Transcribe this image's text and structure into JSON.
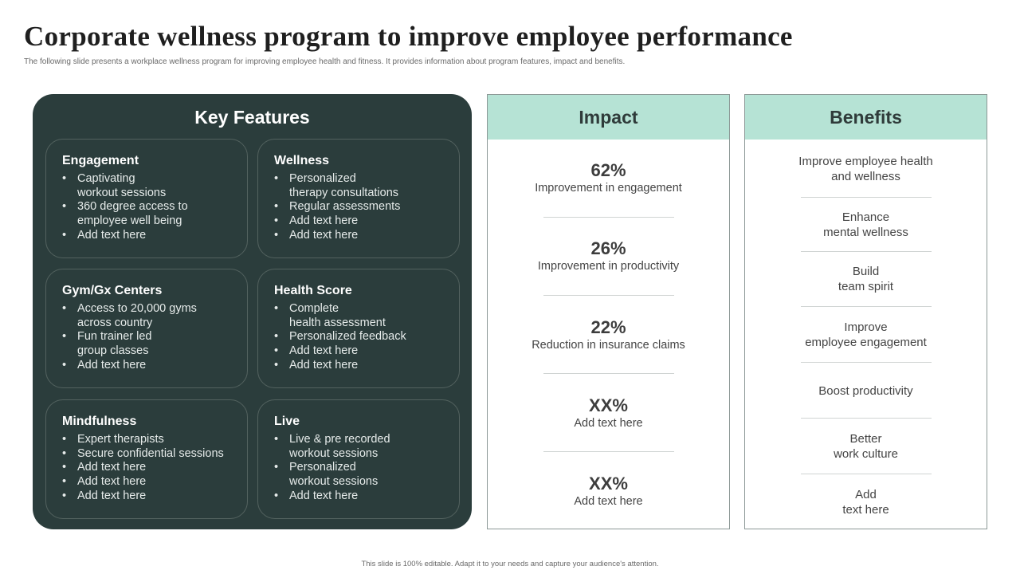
{
  "slide": {
    "title": "Corporate wellness program to improve employee performance",
    "subtitle": "The following slide presents a workplace wellness program for improving employee health and fitness. It provides information about program features, impact and benefits.",
    "footer": "This slide is 100% editable. Adapt it to your needs and capture your audience's attention."
  },
  "key_features": {
    "heading": "Key Features",
    "cards": [
      {
        "title": "Engagement",
        "items": [
          "Captivating\nworkout sessions",
          "360 degree access to\nemployee well being",
          "Add text here"
        ]
      },
      {
        "title": "Wellness",
        "items": [
          "Personalized\ntherapy consultations",
          "Regular assessments",
          "Add text here",
          "Add text here"
        ]
      },
      {
        "title": "Gym/Gx Centers",
        "items": [
          "Access to 20,000 gyms\nacross country",
          "Fun trainer led\ngroup classes",
          "Add text here"
        ]
      },
      {
        "title": "Health Score",
        "items": [
          "Complete\nhealth assessment",
          "Personalized feedback",
          "Add text here",
          "Add text here"
        ]
      },
      {
        "title": "Mindfulness",
        "items": [
          "Expert therapists",
          "Secure confidential sessions",
          "Add text here",
          "Add text here",
          "Add text here"
        ]
      },
      {
        "title": "Live",
        "items": [
          "Live & pre recorded\nworkout sessions",
          "Personalized\nworkout sessions",
          "Add text here"
        ]
      }
    ]
  },
  "impact": {
    "heading": "Impact",
    "items": [
      {
        "value": "62%",
        "label": "Improvement in engagement"
      },
      {
        "value": "26%",
        "label": "Improvement in productivity"
      },
      {
        "value": "22%",
        "label": "Reduction in insurance claims"
      },
      {
        "value": "XX%",
        "label": "Add text here"
      },
      {
        "value": "XX%",
        "label": "Add text here"
      }
    ]
  },
  "benefits": {
    "heading": "Benefits",
    "items": [
      "Improve employee health\nand wellness",
      "Enhance\nmental wellness",
      "Build\nteam spirit",
      "Improve\nemployee engagement",
      "Boost productivity",
      "Better\nwork culture",
      "Add\ntext here"
    ]
  }
}
